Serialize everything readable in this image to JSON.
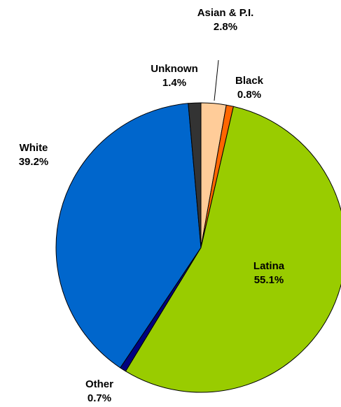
{
  "chart_data": {
    "type": "pie",
    "title": "",
    "slices": [
      {
        "name": "Asian & P.I.",
        "value": 2.8,
        "label": "2.8%",
        "color": "#FFCC99"
      },
      {
        "name": "Black",
        "value": 0.8,
        "label": "0.8%",
        "color": "#FF6600"
      },
      {
        "name": "Latina",
        "value": 55.1,
        "label": "55.1%",
        "color": "#99CC00"
      },
      {
        "name": "Other",
        "value": 0.7,
        "label": "0.7%",
        "color": "#000080"
      },
      {
        "name": "White",
        "value": 39.2,
        "label": "39.2%",
        "color": "#0066CC"
      },
      {
        "name": "Unknown",
        "value": 1.4,
        "label": "1.4%",
        "color": "#333333"
      }
    ],
    "start": "12 o'clock",
    "direction": "clockwise",
    "data_labels": "outside, with leader line for Asian & P.I.; Latina inside"
  }
}
